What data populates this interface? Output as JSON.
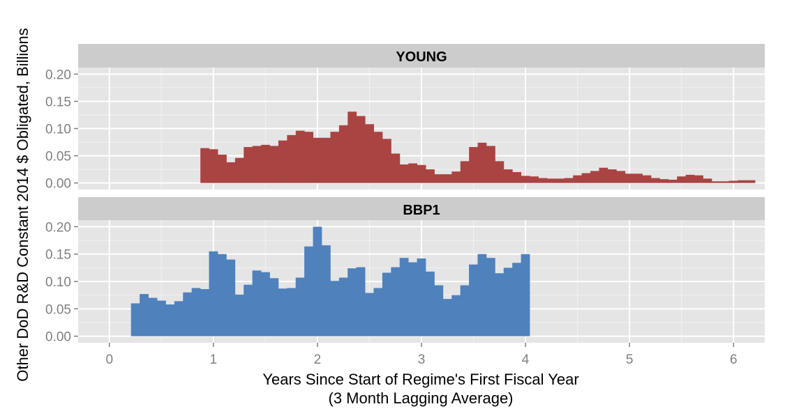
{
  "colors": {
    "panel_bg": "#e5e5e5",
    "strip_bg": "#cccccc",
    "grid_major": "#ffffff",
    "grid_minor": "#f2f2f2",
    "young_fill": "#a94442",
    "bbp1_fill": "#4f81bd",
    "tick_text": "#7f7f7f"
  },
  "chart_data": {
    "type": "bar",
    "xlabel_line1": "Years Since Start of Regime's First Fiscal Year",
    "xlabel_line2": "(3 Month Lagging Average)",
    "ylabel": "Other DoD R&D Constant 2014 $ Obligated, Billions",
    "xlim": [
      -0.3,
      6.3
    ],
    "xticks": [
      "0",
      "1",
      "2",
      "3",
      "4",
      "5",
      "6"
    ],
    "yticks": [
      "0.00",
      "0.05",
      "0.10",
      "0.15",
      "0.20"
    ],
    "grid": true,
    "bin_width": 0.0833,
    "panels": [
      {
        "name": "YOUNG",
        "ylim": [
          -0.012,
          0.212
        ],
        "x_start": 0.875,
        "values": [
          0.064,
          0.062,
          0.052,
          0.038,
          0.046,
          0.066,
          0.068,
          0.07,
          0.068,
          0.078,
          0.088,
          0.096,
          0.094,
          0.083,
          0.083,
          0.094,
          0.106,
          0.131,
          0.123,
          0.108,
          0.094,
          0.081,
          0.054,
          0.034,
          0.036,
          0.033,
          0.025,
          0.016,
          0.016,
          0.021,
          0.04,
          0.066,
          0.074,
          0.068,
          0.04,
          0.025,
          0.02,
          0.013,
          0.012,
          0.009,
          0.008,
          0.008,
          0.009,
          0.014,
          0.018,
          0.022,
          0.028,
          0.025,
          0.022,
          0.017,
          0.017,
          0.014,
          0.009,
          0.007,
          0.006,
          0.012,
          0.015,
          0.014,
          0.008,
          0.003,
          0.003,
          0.004,
          0.005,
          0.005
        ]
      },
      {
        "name": "BBP1",
        "ylim": [
          -0.012,
          0.212
        ],
        "x_start": 0.208,
        "values": [
          0.06,
          0.077,
          0.07,
          0.065,
          0.058,
          0.064,
          0.08,
          0.088,
          0.086,
          0.155,
          0.15,
          0.14,
          0.076,
          0.094,
          0.12,
          0.117,
          0.106,
          0.087,
          0.088,
          0.107,
          0.164,
          0.2,
          0.166,
          0.101,
          0.107,
          0.124,
          0.126,
          0.079,
          0.088,
          0.116,
          0.126,
          0.143,
          0.135,
          0.142,
          0.118,
          0.093,
          0.068,
          0.075,
          0.093,
          0.131,
          0.15,
          0.143,
          0.115,
          0.125,
          0.134,
          0.15
        ]
      }
    ]
  }
}
